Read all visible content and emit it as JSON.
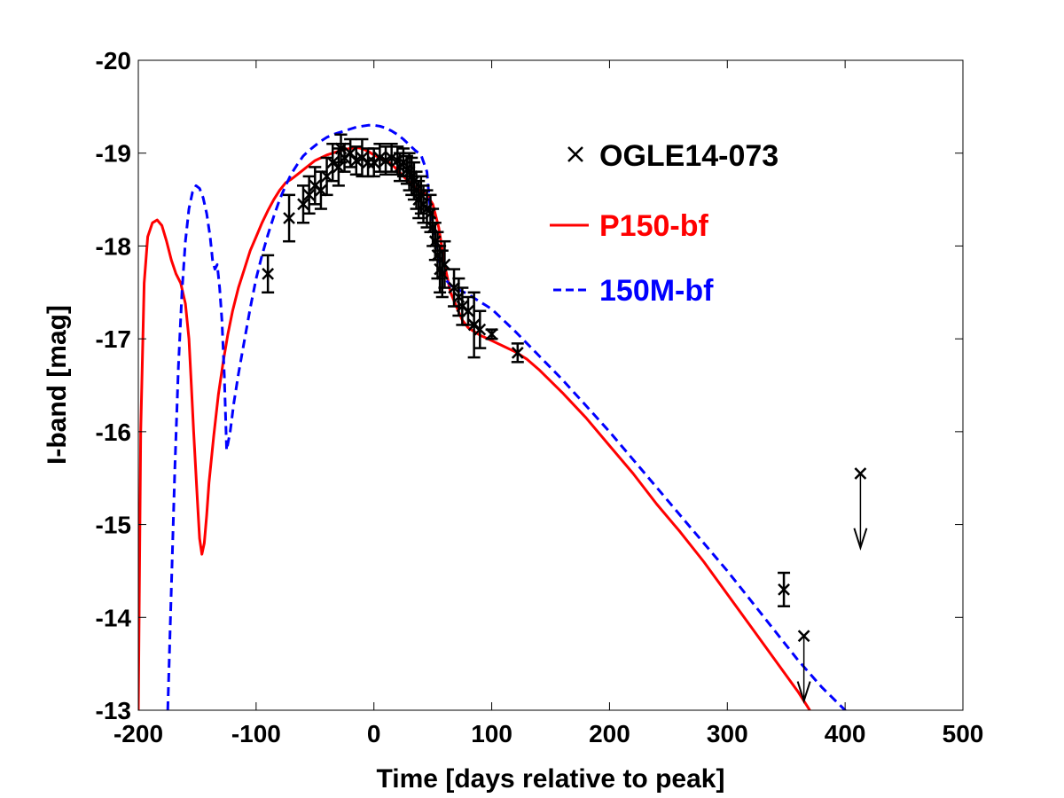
{
  "chart_data": {
    "type": "line",
    "title": "",
    "xlabel": "Time [days relative to peak]",
    "ylabel": "I-band [mag]",
    "xlim": [
      -200,
      500
    ],
    "ylim": [
      -13,
      -20
    ],
    "y_inverted": true,
    "grid": false,
    "legend_position": "top-right",
    "x_ticks": [
      -200,
      -100,
      0,
      100,
      200,
      300,
      400,
      500
    ],
    "y_ticks": [
      -20,
      -19,
      -18,
      -17,
      -16,
      -15,
      -14,
      -13
    ],
    "x_tick_labels": [
      "-200",
      "-100",
      "0",
      "100",
      "200",
      "300",
      "400",
      "500"
    ],
    "y_tick_labels": [
      "-20",
      "-19",
      "-18",
      "-17",
      "-16",
      "-15",
      "-14",
      "-13"
    ],
    "colors": {
      "data": "#000000",
      "p150": "#ff0000",
      "m150": "#0000ff"
    },
    "legend": [
      {
        "label": "OGLE14-073",
        "style": "marker-x",
        "color": "#000000"
      },
      {
        "label": "P150-bf",
        "style": "solid",
        "color": "#ff0000"
      },
      {
        "label": "150M-bf",
        "style": "dashed",
        "color": "#0000ff"
      }
    ],
    "series": [
      {
        "name": "P150-bf",
        "style": "solid",
        "color": "#ff0000",
        "x": [
          -200,
          -198,
          -195,
          -192,
          -188,
          -184,
          -180,
          -176,
          -172,
          -168,
          -164,
          -160,
          -157,
          -155,
          -153,
          -150,
          -148,
          -146,
          -144,
          -142,
          -140,
          -136,
          -132,
          -128,
          -124,
          -120,
          -115,
          -110,
          -105,
          -100,
          -95,
          -90,
          -85,
          -80,
          -75,
          -70,
          -65,
          -60,
          -55,
          -50,
          -45,
          -40,
          -35,
          -30,
          -25,
          -20,
          -15,
          -10,
          -5,
          0,
          5,
          10,
          15,
          20,
          25,
          30,
          35,
          40,
          45,
          50,
          55,
          60,
          65,
          70,
          75,
          80,
          85,
          90,
          95,
          100,
          110,
          120,
          130,
          140,
          160,
          180,
          200,
          220,
          240,
          260,
          280,
          300,
          320,
          340,
          360,
          370
        ],
        "y": [
          -13.0,
          -16.0,
          -17.6,
          -18.1,
          -18.25,
          -18.28,
          -18.22,
          -18.05,
          -17.85,
          -17.7,
          -17.6,
          -17.38,
          -17.0,
          -16.5,
          -16.0,
          -15.3,
          -14.85,
          -14.68,
          -14.8,
          -15.1,
          -15.45,
          -15.95,
          -16.4,
          -16.75,
          -17.05,
          -17.3,
          -17.55,
          -17.75,
          -17.95,
          -18.1,
          -18.25,
          -18.38,
          -18.5,
          -18.6,
          -18.68,
          -18.72,
          -18.77,
          -18.82,
          -18.87,
          -18.92,
          -18.95,
          -18.98,
          -19.0,
          -19.02,
          -19.04,
          -19.05,
          -19.06,
          -19.05,
          -19.02,
          -18.98,
          -18.95,
          -18.92,
          -18.88,
          -18.82,
          -18.75,
          -18.69,
          -18.63,
          -18.59,
          -18.55,
          -18.45,
          -18.2,
          -17.8,
          -17.5,
          -17.35,
          -17.2,
          -17.12,
          -17.08,
          -17.04,
          -17.01,
          -16.98,
          -16.92,
          -16.86,
          -16.78,
          -16.67,
          -16.42,
          -16.15,
          -15.85,
          -15.55,
          -15.22,
          -14.92,
          -14.6,
          -14.25,
          -13.9,
          -13.55,
          -13.2,
          -13.0
        ]
      },
      {
        "name": "150M-bf",
        "style": "dashed",
        "color": "#0000ff",
        "x": [
          -175,
          -172,
          -169,
          -166,
          -163,
          -160,
          -157,
          -154,
          -151,
          -148,
          -145,
          -142,
          -139,
          -137,
          -135,
          -133,
          -131,
          -129,
          -127,
          -125,
          -122,
          -119,
          -115,
          -110,
          -105,
          -100,
          -95,
          -90,
          -85,
          -80,
          -75,
          -70,
          -65,
          -60,
          -55,
          -50,
          -45,
          -40,
          -35,
          -30,
          -25,
          -20,
          -15,
          -10,
          -5,
          0,
          5,
          10,
          15,
          20,
          25,
          30,
          35,
          40,
          45,
          47,
          50,
          55,
          60,
          65,
          70,
          75,
          80,
          85,
          90,
          95,
          100,
          110,
          120,
          140,
          160,
          180,
          200,
          220,
          240,
          260,
          280,
          300,
          320,
          340,
          360,
          380,
          400,
          405
        ],
        "y": [
          -13.0,
          -14.3,
          -15.6,
          -16.7,
          -17.5,
          -18.05,
          -18.4,
          -18.58,
          -18.65,
          -18.62,
          -18.52,
          -18.35,
          -18.1,
          -17.85,
          -17.75,
          -17.8,
          -17.55,
          -17.2,
          -16.6,
          -15.8,
          -16.0,
          -16.3,
          -16.62,
          -16.98,
          -17.33,
          -17.65,
          -17.9,
          -18.12,
          -18.32,
          -18.5,
          -18.65,
          -18.78,
          -18.88,
          -18.97,
          -19.03,
          -19.08,
          -19.13,
          -19.17,
          -19.2,
          -19.22,
          -19.24,
          -19.26,
          -19.28,
          -19.29,
          -19.3,
          -19.3,
          -19.29,
          -19.27,
          -19.24,
          -19.2,
          -19.15,
          -19.09,
          -19.03,
          -18.98,
          -18.8,
          -18.5,
          -18.2,
          -17.85,
          -17.65,
          -17.58,
          -17.54,
          -17.51,
          -17.48,
          -17.44,
          -17.4,
          -17.36,
          -17.32,
          -17.2,
          -17.08,
          -16.82,
          -16.56,
          -16.28,
          -16.0,
          -15.7,
          -15.4,
          -15.1,
          -14.8,
          -14.5,
          -14.18,
          -13.86,
          -13.54,
          -13.25,
          -13.0,
          -12.95
        ]
      }
    ],
    "observations": {
      "name": "OGLE14-073",
      "marker": "x",
      "points": [
        {
          "x": -90,
          "y": -17.7,
          "err": 0.2
        },
        {
          "x": -72,
          "y": -18.3,
          "err": 0.25
        },
        {
          "x": -60,
          "y": -18.45,
          "err": 0.2
        },
        {
          "x": -55,
          "y": -18.55,
          "err": 0.2
        },
        {
          "x": -50,
          "y": -18.65,
          "err": 0.2
        },
        {
          "x": -45,
          "y": -18.6,
          "err": 0.2
        },
        {
          "x": -40,
          "y": -18.75,
          "err": 0.2
        },
        {
          "x": -35,
          "y": -18.9,
          "err": 0.2
        },
        {
          "x": -30,
          "y": -18.85,
          "err": 0.2
        },
        {
          "x": -28,
          "y": -19.05,
          "err": 0.15
        },
        {
          "x": -25,
          "y": -18.95,
          "err": 0.15
        },
        {
          "x": -20,
          "y": -19.0,
          "err": 0.15
        },
        {
          "x": -15,
          "y": -18.92,
          "err": 0.15
        },
        {
          "x": -10,
          "y": -18.95,
          "err": 0.2
        },
        {
          "x": -5,
          "y": -18.9,
          "err": 0.15
        },
        {
          "x": 0,
          "y": -18.9,
          "err": 0.15
        },
        {
          "x": 5,
          "y": -18.95,
          "err": 0.15
        },
        {
          "x": 10,
          "y": -18.92,
          "err": 0.15
        },
        {
          "x": 15,
          "y": -18.95,
          "err": 0.15
        },
        {
          "x": 20,
          "y": -18.92,
          "err": 0.15
        },
        {
          "x": 22,
          "y": -18.85,
          "err": 0.15
        },
        {
          "x": 25,
          "y": -18.9,
          "err": 0.15
        },
        {
          "x": 28,
          "y": -18.82,
          "err": 0.15
        },
        {
          "x": 30,
          "y": -18.8,
          "err": 0.2
        },
        {
          "x": 32,
          "y": -18.75,
          "err": 0.2
        },
        {
          "x": 34,
          "y": -18.7,
          "err": 0.2
        },
        {
          "x": 36,
          "y": -18.6,
          "err": 0.2
        },
        {
          "x": 38,
          "y": -18.5,
          "err": 0.2
        },
        {
          "x": 40,
          "y": -18.55,
          "err": 0.2
        },
        {
          "x": 42,
          "y": -18.45,
          "err": 0.2
        },
        {
          "x": 45,
          "y": -18.4,
          "err": 0.2
        },
        {
          "x": 48,
          "y": -18.35,
          "err": 0.2
        },
        {
          "x": 50,
          "y": -18.2,
          "err": 0.2
        },
        {
          "x": 52,
          "y": -18.05,
          "err": 0.2
        },
        {
          "x": 54,
          "y": -17.9,
          "err": 0.25
        },
        {
          "x": 56,
          "y": -17.75,
          "err": 0.25
        },
        {
          "x": 58,
          "y": -17.7,
          "err": 0.25
        },
        {
          "x": 60,
          "y": -17.8,
          "err": 0.25
        },
        {
          "x": 68,
          "y": -17.55,
          "err": 0.2
        },
        {
          "x": 72,
          "y": -17.45,
          "err": 0.2
        },
        {
          "x": 75,
          "y": -17.35,
          "err": 0.2
        },
        {
          "x": 80,
          "y": -17.3,
          "err": 0.15
        },
        {
          "x": 85,
          "y": -17.15,
          "err": 0.35
        },
        {
          "x": 90,
          "y": -17.1,
          "err": 0.2
        },
        {
          "x": 100,
          "y": -17.05,
          "err": 0.05
        },
        {
          "x": 122,
          "y": -16.85,
          "err": 0.1
        },
        {
          "x": 348,
          "y": -14.3,
          "err": 0.18
        },
        {
          "x": 365,
          "y": -13.8,
          "err": 0.0,
          "upper_limit": true,
          "arrow_to": -13.1
        },
        {
          "x": 413,
          "y": -15.55,
          "err": 0.0,
          "upper_limit": true,
          "arrow_to": -14.75
        }
      ]
    }
  }
}
